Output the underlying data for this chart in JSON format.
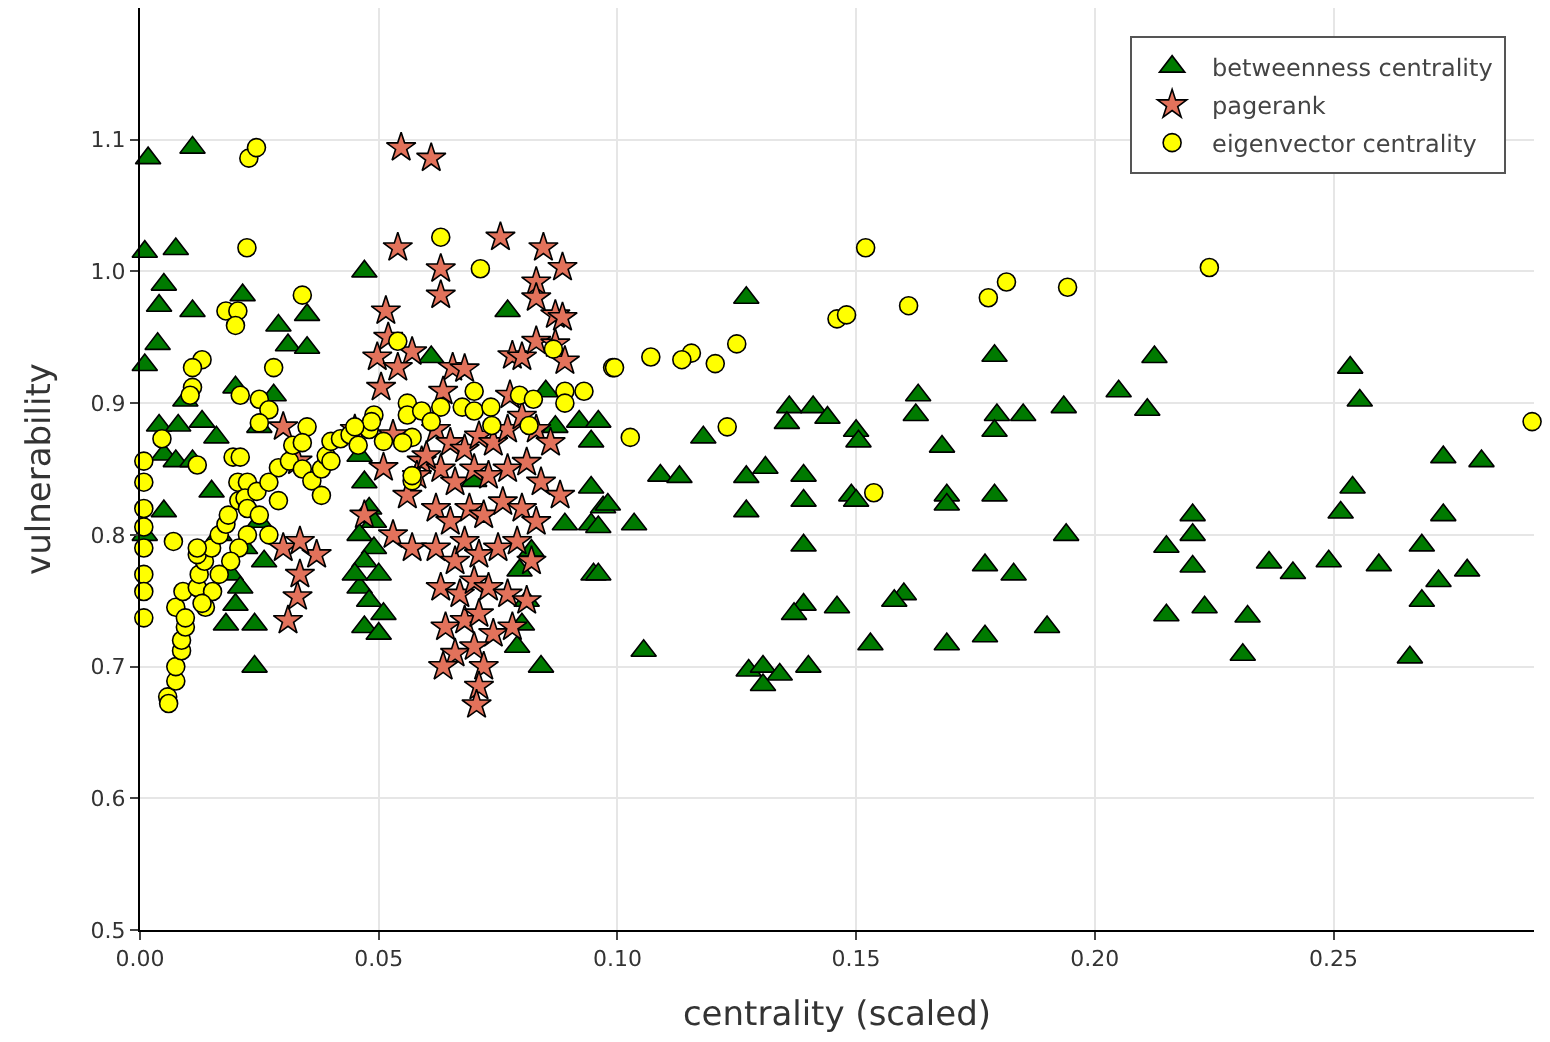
{
  "chart_data": {
    "type": "scatter",
    "xlabel": "centrality (scaled)",
    "ylabel": "vulnerability",
    "xlim": [
      0,
      0.292
    ],
    "ylim": [
      0.5,
      1.2
    ],
    "xticks": [
      {
        "value": 0,
        "label": "0.00"
      },
      0.05,
      {
        "value": 0.1,
        "label": "0.10"
      },
      0.15,
      {
        "value": 0.2,
        "label": "0.20"
      },
      0.25
    ],
    "yticks": [
      0.5,
      0.6,
      0.7,
      0.8,
      0.9,
      {
        "value": 1.0,
        "label": "1.0"
      },
      1.1
    ],
    "grid": true,
    "legend": "top right",
    "series": [
      {
        "name": "betweenness centrality",
        "color": "#007a00",
        "marker": "triangle",
        "x": [
          0.0017,
          0.011,
          0.001,
          0.0075,
          0.005,
          0.004,
          0.011,
          0.0215,
          0.047,
          0.029,
          0.035,
          0.031,
          0.035,
          0.0037,
          0.001,
          0.02,
          0.0095,
          0.028,
          0.004,
          0.008,
          0.013,
          0.016,
          0.025,
          0.005,
          0.0075,
          0.011,
          0.015,
          0.005,
          0.001,
          0.0166,
          0.019,
          0.02,
          0.024,
          0.018,
          0.024,
          0.022,
          0.026,
          0.021,
          0.025,
          0.046,
          0.047,
          0.048,
          0.046,
          0.049,
          0.047,
          0.05,
          0.046,
          0.048,
          0.051,
          0.047,
          0.05,
          0.049,
          0.045,
          0.077,
          0.061,
          0.085,
          0.092,
          0.0945,
          0.087,
          0.0945,
          0.097,
          0.089,
          0.0945,
          0.082,
          0.095,
          0.0795,
          0.081,
          0.08,
          0.079,
          0.084,
          0.07,
          0.127,
          0.179,
          0.163,
          0.1625,
          0.136,
          0.141,
          0.144,
          0.1355,
          0.15,
          0.1505,
          0.1795,
          0.179,
          0.185,
          0.1935,
          0.118,
          0.168,
          0.096,
          0.109,
          0.113,
          0.127,
          0.131,
          0.139,
          0.139,
          0.127,
          0.149,
          0.15,
          0.169,
          0.169,
          0.179,
          0.098,
          0.1035,
          0.096,
          0.139,
          0.177,
          0.183,
          0.194,
          0.096,
          0.139,
          0.137,
          0.146,
          0.16,
          0.158,
          0.1055,
          0.153,
          0.169,
          0.177,
          0.19,
          0.1275,
          0.1305,
          0.134,
          0.1305,
          0.14,
          0.2125,
          0.205,
          0.211,
          0.2535,
          0.2555,
          0.273,
          0.281,
          0.254,
          0.2515,
          0.273,
          0.2205,
          0.2205,
          0.215,
          0.2205,
          0.2365,
          0.2415,
          0.249,
          0.2595,
          0.2685,
          0.278,
          0.272,
          0.2685,
          0.215,
          0.223,
          0.232,
          0.231,
          0.266
        ],
        "values": [
          1.086,
          1.094,
          1.015,
          1.017,
          0.99,
          0.974,
          0.97,
          0.982,
          1.0,
          0.959,
          0.967,
          0.944,
          0.942,
          0.945,
          0.929,
          0.912,
          0.902,
          0.906,
          0.883,
          0.883,
          0.886,
          0.874,
          0.882,
          0.861,
          0.856,
          0.856,
          0.833,
          0.818,
          0.8,
          0.8,
          0.77,
          0.747,
          0.732,
          0.732,
          0.7,
          0.79,
          0.78,
          0.76,
          0.81,
          0.86,
          0.84,
          0.82,
          0.8,
          0.79,
          0.78,
          0.77,
          0.76,
          0.75,
          0.74,
          0.73,
          0.725,
          0.81,
          0.77,
          0.97,
          0.935,
          0.909,
          0.886,
          0.871,
          0.882,
          0.836,
          0.821,
          0.808,
          0.808,
          0.788,
          0.77,
          0.773,
          0.75,
          0.732,
          0.715,
          0.7,
          0.841,
          0.98,
          0.936,
          0.906,
          0.891,
          0.897,
          0.897,
          0.889,
          0.885,
          0.879,
          0.871,
          0.891,
          0.879,
          0.891,
          0.897,
          0.874,
          0.867,
          0.886,
          0.845,
          0.844,
          0.844,
          0.851,
          0.845,
          0.826,
          0.818,
          0.83,
          0.826,
          0.83,
          0.823,
          0.83,
          0.823,
          0.808,
          0.806,
          0.792,
          0.777,
          0.77,
          0.8,
          0.77,
          0.747,
          0.74,
          0.745,
          0.755,
          0.75,
          0.712,
          0.717,
          0.717,
          0.723,
          0.73,
          0.697,
          0.7,
          0.694,
          0.686,
          0.7,
          0.935,
          0.909,
          0.895,
          0.927,
          0.902,
          0.859,
          0.856,
          0.836,
          0.817,
          0.815,
          0.815,
          0.8,
          0.791,
          0.776,
          0.779,
          0.771,
          0.78,
          0.777,
          0.792,
          0.773,
          0.765,
          0.75,
          0.739,
          0.745,
          0.738,
          0.709,
          0.707
        ]
      },
      {
        "name": "pagerank",
        "color": "#e2725b",
        "marker": "star",
        "x": [
          0.0547,
          0.061,
          0.054,
          0.0755,
          0.0845,
          0.0885,
          0.063,
          0.063,
          0.083,
          0.083,
          0.0515,
          0.087,
          0.0885,
          0.052,
          0.057,
          0.0497,
          0.054,
          0.0655,
          0.068,
          0.078,
          0.08,
          0.083,
          0.087,
          0.089,
          0.0505,
          0.0635,
          0.0775,
          0.031,
          0.033,
          0.0335,
          0.037,
          0.03,
          0.0335,
          0.03,
          0.033,
          0.045,
          0.047,
          0.053,
          0.057,
          0.059,
          0.051,
          0.053,
          0.062,
          0.065,
          0.068,
          0.071,
          0.074,
          0.077,
          0.08,
          0.083,
          0.086,
          0.063,
          0.066,
          0.07,
          0.073,
          0.077,
          0.081,
          0.084,
          0.088,
          0.062,
          0.065,
          0.069,
          0.072,
          0.076,
          0.08,
          0.083,
          0.062,
          0.066,
          0.068,
          0.071,
          0.075,
          0.079,
          0.082,
          0.063,
          0.067,
          0.07,
          0.073,
          0.077,
          0.081,
          0.064,
          0.068,
          0.071,
          0.074,
          0.078,
          0.066,
          0.07,
          0.072,
          0.071,
          0.0705,
          0.0635,
          0.056,
          0.058,
          0.06
        ],
        "values": [
          1.094,
          1.086,
          1.018,
          1.026,
          1.018,
          1.003,
          1.002,
          0.982,
          0.992,
          0.98,
          0.97,
          0.967,
          0.965,
          0.95,
          0.939,
          0.935,
          0.927,
          0.927,
          0.926,
          0.936,
          0.935,
          0.947,
          0.945,
          0.932,
          0.912,
          0.909,
          0.906,
          0.735,
          0.753,
          0.77,
          0.785,
          0.79,
          0.795,
          0.882,
          0.856,
          0.88,
          0.815,
          0.8,
          0.79,
          0.856,
          0.851,
          0.876,
          0.88,
          0.87,
          0.865,
          0.875,
          0.87,
          0.88,
          0.89,
          0.88,
          0.87,
          0.85,
          0.84,
          0.85,
          0.845,
          0.85,
          0.855,
          0.84,
          0.83,
          0.82,
          0.81,
          0.82,
          0.815,
          0.825,
          0.82,
          0.81,
          0.79,
          0.78,
          0.795,
          0.785,
          0.79,
          0.795,
          0.78,
          0.76,
          0.755,
          0.765,
          0.76,
          0.755,
          0.75,
          0.73,
          0.735,
          0.74,
          0.725,
          0.73,
          0.71,
          0.715,
          0.7,
          0.685,
          0.671,
          0.7,
          0.83,
          0.845,
          0.86
        ]
      },
      {
        "name": "eigenvector centrality",
        "color": "#ffff00",
        "marker": "circle",
        "x": [
          0.0228,
          0.0244,
          0.0224,
          0.034,
          0.018,
          0.0205,
          0.02,
          0.013,
          0.011,
          0.028,
          0.011,
          0.0105,
          0.021,
          0.025,
          0.027,
          0.025,
          0.035,
          0.0046,
          0.0008,
          0.0195,
          0.021,
          0.012,
          0.0058,
          0.006,
          0.0075,
          0.0075,
          0.0087,
          0.0087,
          0.0095,
          0.0075,
          0.009,
          0.007,
          0.012,
          0.0124,
          0.0135,
          0.012,
          0.0137,
          0.015,
          0.0166,
          0.018,
          0.0185,
          0.0207,
          0.0205,
          0.0225,
          0.022,
          0.0225,
          0.0245,
          0.027,
          0.029,
          0.0313,
          0.032,
          0.034,
          0.034,
          0.036,
          0.038,
          0.039,
          0.04,
          0.042,
          0.044,
          0.04,
          0.038,
          0.029,
          0.025,
          0.027,
          0.0225,
          0.0207,
          0.019,
          0.0166,
          0.0152,
          0.013,
          0.0095,
          0.012,
          0.0008,
          0.0008,
          0.0008,
          0.0008,
          0.0008,
          0.0008,
          0.0008,
          0.063,
          0.0713,
          0.054,
          0.0866,
          0.099,
          0.07,
          0.0795,
          0.0824,
          0.089,
          0.093,
          0.089,
          0.049,
          0.048,
          0.051,
          0.056,
          0.056,
          0.059,
          0.063,
          0.057,
          0.055,
          0.061,
          0.0675,
          0.07,
          0.0735,
          0.0737,
          0.0815,
          0.057,
          0.057,
          0.0485,
          0.045,
          0.0457,
          0.152,
          0.1815,
          0.1777,
          0.1943,
          0.146,
          0.148,
          0.161,
          0.125,
          0.1155,
          0.1135,
          0.1205,
          0.107,
          0.0994,
          0.1027,
          0.123,
          0.1537,
          0.224,
          0.2916
        ],
        "values": [
          1.086,
          1.094,
          1.018,
          0.982,
          0.97,
          0.97,
          0.959,
          0.933,
          0.927,
          0.927,
          0.912,
          0.906,
          0.906,
          0.903,
          0.895,
          0.885,
          0.882,
          0.873,
          0.856,
          0.859,
          0.859,
          0.853,
          0.677,
          0.672,
          0.689,
          0.7,
          0.712,
          0.72,
          0.73,
          0.745,
          0.757,
          0.795,
          0.76,
          0.77,
          0.78,
          0.785,
          0.745,
          0.79,
          0.8,
          0.808,
          0.815,
          0.826,
          0.84,
          0.84,
          0.828,
          0.82,
          0.833,
          0.84,
          0.851,
          0.856,
          0.868,
          0.87,
          0.85,
          0.841,
          0.85,
          0.86,
          0.871,
          0.873,
          0.876,
          0.856,
          0.83,
          0.826,
          0.815,
          0.8,
          0.8,
          0.79,
          0.78,
          0.77,
          0.757,
          0.748,
          0.737,
          0.79,
          0.82,
          0.806,
          0.79,
          0.77,
          0.757,
          0.737,
          0.84,
          1.026,
          1.002,
          0.947,
          0.941,
          0.927,
          0.909,
          0.906,
          0.903,
          0.909,
          0.909,
          0.9,
          0.891,
          0.88,
          0.871,
          0.9,
          0.891,
          0.894,
          0.897,
          0.874,
          0.87,
          0.886,
          0.897,
          0.894,
          0.897,
          0.883,
          0.883,
          0.841,
          0.845,
          0.886,
          0.882,
          0.868,
          1.018,
          0.992,
          0.98,
          0.988,
          0.964,
          0.967,
          0.974,
          0.945,
          0.938,
          0.933,
          0.93,
          0.935,
          0.927,
          0.874,
          0.882,
          0.832,
          1.003,
          0.886
        ]
      }
    ]
  }
}
